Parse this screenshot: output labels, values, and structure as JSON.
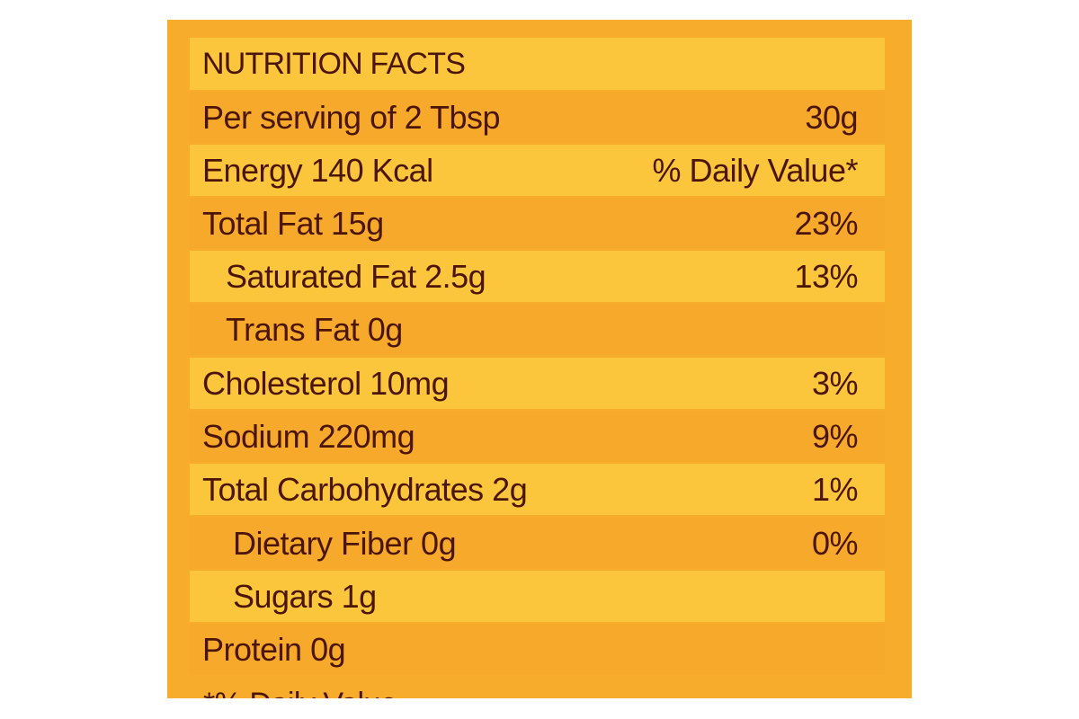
{
  "label": {
    "title": "NUTRITION FACTS",
    "serving": {
      "left": "Per serving of 2 Tbsp",
      "right": "30g"
    },
    "energy": {
      "left": "Energy 140 Kcal",
      "right": "% Daily Value*"
    },
    "rows": [
      {
        "left": "Total Fat 15g",
        "right": "23%"
      },
      {
        "left": "Saturated Fat 2.5g",
        "right": "13%"
      },
      {
        "left": "Trans Fat 0g",
        "right": ""
      },
      {
        "left": "Cholesterol 10mg",
        "right": "3%"
      },
      {
        "left": "Sodium 220mg",
        "right": "9%"
      },
      {
        "left": "Total Carbohydrates 2g",
        "right": "1%"
      },
      {
        "left": "Dietary Fiber 0g",
        "right": "0%"
      },
      {
        "left": "Sugars 1g",
        "right": ""
      },
      {
        "left": "Protein 0g",
        "right": ""
      }
    ],
    "footnote": "*% Daily Value"
  },
  "colors": {
    "background": "#f7ad2b",
    "band_light": "#fbc63c",
    "band_dark": "#f6a92a",
    "text": "#4b1508"
  }
}
